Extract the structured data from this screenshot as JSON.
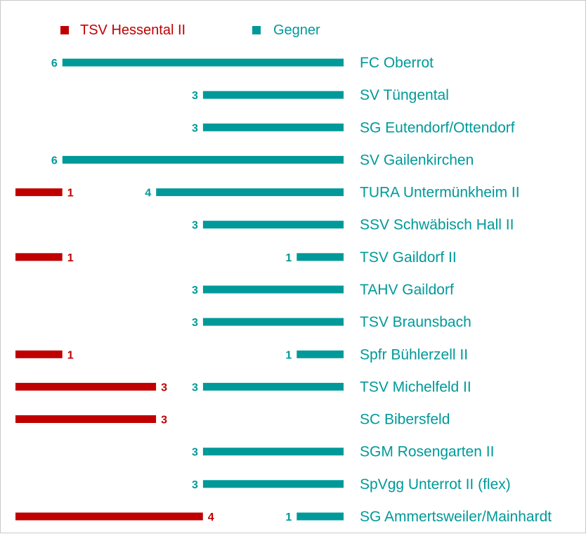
{
  "chart_data": {
    "type": "bar",
    "series": [
      {
        "name": "TSV Hessental II",
        "color": "#c00000"
      },
      {
        "name": "Gegner",
        "color": "#009999"
      }
    ],
    "legend_position": "top",
    "grid": false,
    "categories": [
      "FC Oberrot",
      "SV Tüngental",
      "SG Eutendorf/Ottendorf",
      "SV Gailenkirchen",
      "TURA Untermünkheim II",
      "SSV Schwäbisch Hall II",
      "TSV Gaildorf II",
      "TAHV Gaildorf",
      "TSV Braunsbach",
      "Spfr Bühlerzell II",
      "TSV Michelfeld II",
      "SC Bibersfeld",
      "SGM Rosengarten II",
      "SpVgg Unterrot II (flex)",
      "SG Ammertsweiler/Mainhardt"
    ],
    "home_values": [
      0,
      0,
      0,
      0,
      1,
      0,
      1,
      0,
      0,
      1,
      3,
      3,
      0,
      0,
      4
    ],
    "away_values": [
      6,
      3,
      3,
      6,
      4,
      3,
      1,
      3,
      3,
      1,
      3,
      0,
      3,
      3,
      1
    ]
  }
}
